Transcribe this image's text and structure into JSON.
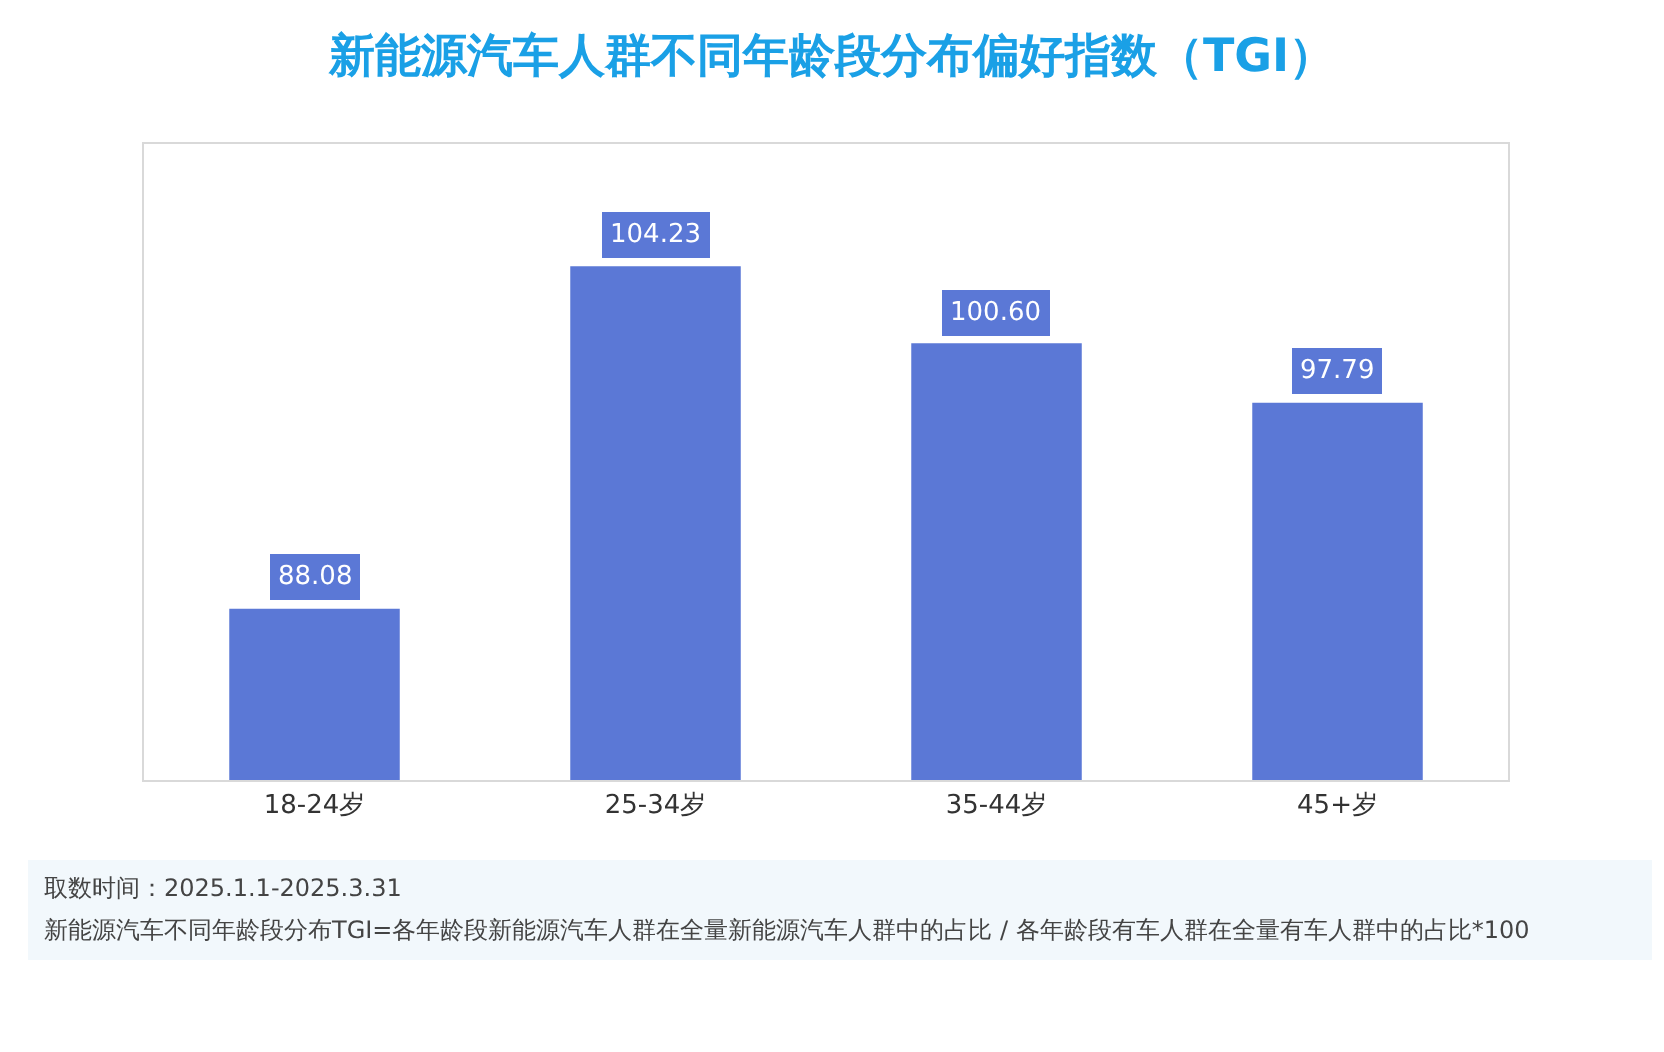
{
  "chart_data": {
    "type": "bar",
    "title": "新能源汽车人群不同年龄段分布偏好指数（TGI）",
    "categories": [
      "18-24岁",
      "25-34岁",
      "35-44岁",
      "45+岁"
    ],
    "values": [
      88.08,
      104.23,
      100.6,
      97.79
    ],
    "value_labels": [
      "88.08",
      "104.23",
      "100.60",
      "97.79"
    ],
    "color": "#5b78d6",
    "ylim": [
      80,
      110
    ],
    "tick_labels": "x",
    "annotations": [
      "取数时间：2025.1.1-2025.3.31",
      "新能源汽车不同年龄段分布TGI=各年龄段新能源汽车人群在全量新能源汽车人群中的占比 / 各年龄段有车人群在全量有车人群中的占比*100"
    ]
  }
}
